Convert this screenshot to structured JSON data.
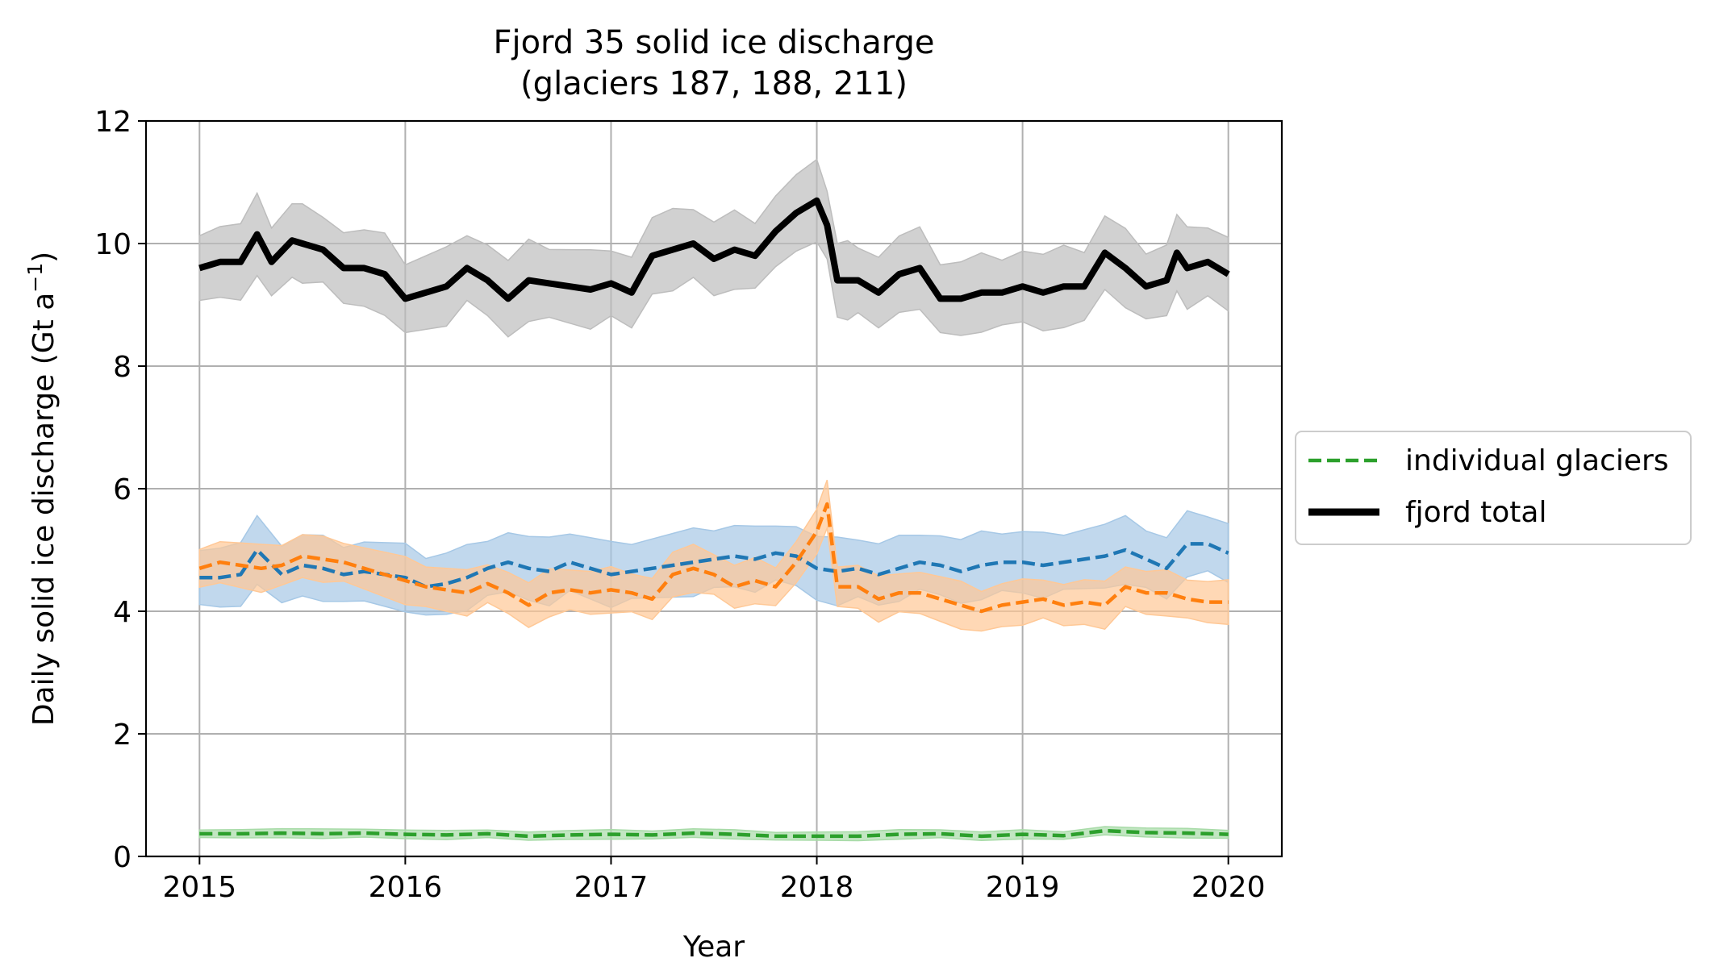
{
  "chart_data": {
    "type": "line",
    "title_line1": "Fjord 35 solid ice discharge",
    "title_line2": "(glaciers 187, 188, 211)",
    "xlabel": "Year",
    "ylabel_main": "Daily solid ice discharge (Gt a",
    "ylabel_sup": "−1",
    "ylabel_close": ")",
    "xlim": [
      2014.74,
      2020.26
    ],
    "ylim": [
      0,
      12
    ],
    "grid": true,
    "legend_position": "outside-right",
    "x_ticks": [
      {
        "value": 2015,
        "label": "2015"
      },
      {
        "value": 2016,
        "label": "2016"
      },
      {
        "value": 2017,
        "label": "2017"
      },
      {
        "value": 2018,
        "label": "2018"
      },
      {
        "value": 2019,
        "label": "2019"
      },
      {
        "value": 2020,
        "label": "2020"
      }
    ],
    "y_ticks": [
      {
        "value": 0,
        "label": "0"
      },
      {
        "value": 2,
        "label": "2"
      },
      {
        "value": 4,
        "label": "4"
      },
      {
        "value": 6,
        "label": "6"
      },
      {
        "value": 8,
        "label": "8"
      },
      {
        "value": 10,
        "label": "10"
      },
      {
        "value": 12,
        "label": "12"
      }
    ],
    "legend": [
      {
        "label": "individual glaciers",
        "color": "#2ca02c",
        "style": "dashed"
      },
      {
        "label": "fjord total",
        "color": "#000000",
        "style": "solid"
      }
    ],
    "series": [
      {
        "color": "#000000",
        "band_color": "#bdbdbd",
        "style": "solid",
        "band_width": 0.6,
        "x": [
          2015.0,
          2015.1,
          2015.2,
          2015.28,
          2015.35,
          2015.45,
          2015.5,
          2015.6,
          2015.7,
          2015.8,
          2015.9,
          2016.0,
          2016.1,
          2016.2,
          2016.3,
          2016.4,
          2016.5,
          2016.6,
          2016.7,
          2016.8,
          2016.9,
          2017.0,
          2017.1,
          2017.2,
          2017.3,
          2017.4,
          2017.5,
          2017.6,
          2017.7,
          2017.8,
          2017.9,
          2018.0,
          2018.05,
          2018.1,
          2018.15,
          2018.2,
          2018.3,
          2018.4,
          2018.5,
          2018.6,
          2018.7,
          2018.8,
          2018.9,
          2019.0,
          2019.1,
          2019.2,
          2019.3,
          2019.4,
          2019.5,
          2019.6,
          2019.7,
          2019.75,
          2019.8,
          2019.9,
          2020.0
        ],
        "y": [
          9.6,
          9.7,
          9.7,
          10.15,
          9.7,
          10.05,
          10.0,
          9.9,
          9.6,
          9.6,
          9.5,
          9.1,
          9.2,
          9.3,
          9.6,
          9.4,
          9.1,
          9.4,
          9.35,
          9.3,
          9.25,
          9.35,
          9.2,
          9.8,
          9.9,
          10.0,
          9.75,
          9.9,
          9.8,
          10.2,
          10.5,
          10.7,
          10.3,
          9.4,
          9.4,
          9.4,
          9.2,
          9.5,
          9.6,
          9.1,
          9.1,
          9.2,
          9.2,
          9.3,
          9.2,
          9.3,
          9.3,
          9.85,
          9.6,
          9.3,
          9.4,
          9.85,
          9.6,
          9.7,
          9.5
        ]
      },
      {
        "color": "#1f77b4",
        "band_color": "#a6c8e6",
        "style": "dashed",
        "band_width": 0.5,
        "x": [
          2015.0,
          2015.1,
          2015.2,
          2015.28,
          2015.4,
          2015.5,
          2015.6,
          2015.7,
          2015.8,
          2015.9,
          2016.0,
          2016.1,
          2016.2,
          2016.3,
          2016.4,
          2016.5,
          2016.6,
          2016.7,
          2016.8,
          2016.9,
          2017.0,
          2017.1,
          2017.2,
          2017.3,
          2017.4,
          2017.5,
          2017.6,
          2017.7,
          2017.8,
          2017.9,
          2018.0,
          2018.1,
          2018.2,
          2018.3,
          2018.4,
          2018.5,
          2018.6,
          2018.7,
          2018.8,
          2018.9,
          2019.0,
          2019.1,
          2019.2,
          2019.3,
          2019.4,
          2019.5,
          2019.6,
          2019.7,
          2019.8,
          2019.9,
          2020.0
        ],
        "y": [
          4.55,
          4.55,
          4.6,
          5.0,
          4.6,
          4.75,
          4.7,
          4.6,
          4.65,
          4.6,
          4.55,
          4.4,
          4.45,
          4.55,
          4.7,
          4.8,
          4.7,
          4.65,
          4.8,
          4.7,
          4.6,
          4.65,
          4.7,
          4.75,
          4.8,
          4.85,
          4.9,
          4.85,
          4.95,
          4.9,
          4.7,
          4.65,
          4.7,
          4.6,
          4.7,
          4.8,
          4.75,
          4.65,
          4.75,
          4.8,
          4.8,
          4.75,
          4.8,
          4.85,
          4.9,
          5.0,
          4.85,
          4.7,
          5.1,
          5.1,
          4.95
        ]
      },
      {
        "color": "#ff7f0e",
        "band_color": "#ffc896",
        "style": "dashed",
        "band_width": 0.35,
        "x": [
          2015.0,
          2015.1,
          2015.2,
          2015.3,
          2015.4,
          2015.5,
          2015.6,
          2015.7,
          2015.8,
          2015.9,
          2016.0,
          2016.1,
          2016.2,
          2016.3,
          2016.4,
          2016.5,
          2016.6,
          2016.7,
          2016.8,
          2016.9,
          2017.0,
          2017.1,
          2017.2,
          2017.3,
          2017.4,
          2017.5,
          2017.6,
          2017.7,
          2017.8,
          2017.9,
          2018.0,
          2018.05,
          2018.1,
          2018.2,
          2018.3,
          2018.4,
          2018.5,
          2018.6,
          2018.7,
          2018.8,
          2018.9,
          2019.0,
          2019.1,
          2019.2,
          2019.3,
          2019.4,
          2019.5,
          2019.6,
          2019.7,
          2019.8,
          2019.9,
          2020.0
        ],
        "y": [
          4.7,
          4.8,
          4.75,
          4.7,
          4.75,
          4.9,
          4.85,
          4.8,
          4.7,
          4.6,
          4.5,
          4.4,
          4.35,
          4.3,
          4.45,
          4.3,
          4.1,
          4.3,
          4.35,
          4.3,
          4.35,
          4.3,
          4.2,
          4.6,
          4.7,
          4.6,
          4.4,
          4.5,
          4.4,
          4.8,
          5.3,
          5.75,
          4.4,
          4.4,
          4.2,
          4.3,
          4.3,
          4.2,
          4.1,
          4.0,
          4.1,
          4.15,
          4.2,
          4.1,
          4.15,
          4.1,
          4.4,
          4.3,
          4.3,
          4.2,
          4.15,
          4.15
        ]
      },
      {
        "color": "#2ca02c",
        "band_color": "#a8dba8",
        "style": "dashed",
        "band_width": 0.07,
        "x": [
          2015.0,
          2015.2,
          2015.4,
          2015.6,
          2015.8,
          2016.0,
          2016.2,
          2016.4,
          2016.6,
          2016.8,
          2017.0,
          2017.2,
          2017.4,
          2017.6,
          2017.8,
          2018.0,
          2018.2,
          2018.4,
          2018.6,
          2018.8,
          2019.0,
          2019.2,
          2019.4,
          2019.6,
          2019.8,
          2020.0
        ],
        "y": [
          0.37,
          0.37,
          0.38,
          0.37,
          0.38,
          0.36,
          0.35,
          0.37,
          0.33,
          0.35,
          0.36,
          0.35,
          0.38,
          0.36,
          0.33,
          0.33,
          0.33,
          0.36,
          0.37,
          0.33,
          0.36,
          0.34,
          0.42,
          0.39,
          0.38,
          0.36
        ]
      }
    ]
  }
}
